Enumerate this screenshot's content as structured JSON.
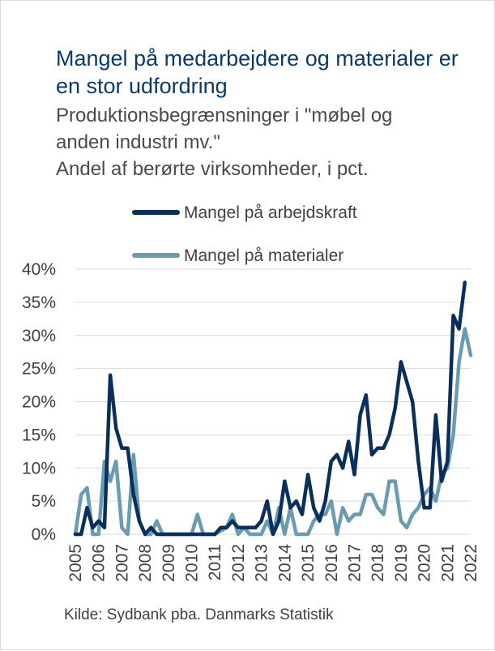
{
  "chart_data": {
    "type": "line",
    "title": "Mangel på medarbejdere og materialer er en stor udfordring",
    "subtitle": [
      "Produktionsbegrænsninger i \"møbel og",
      "anden industri mv.\"",
      "Andel af berørte virksomheder, i pct."
    ],
    "source": "Kilde: Sydbank pba. Danmarks Statistik",
    "ylim": [
      0,
      40
    ],
    "yticks": [
      "0%",
      "5%",
      "10%",
      "15%",
      "20%",
      "25%",
      "30%",
      "35%",
      "40%"
    ],
    "xlim": [
      2005,
      2022
    ],
    "xticks": [
      "2005",
      "2006",
      "2007",
      "2008",
      "2009",
      "2010",
      "2011",
      "2012",
      "2013",
      "2014",
      "2015",
      "2016",
      "2017",
      "2018",
      "2019",
      "2020",
      "2021",
      "2022"
    ],
    "grid": "horizontal",
    "legend_position": "top",
    "series": [
      {
        "name": "Mangel på arbejdskraft",
        "color": "#0b2f5b",
        "points": [
          [
            2005.0,
            0
          ],
          [
            2005.25,
            0
          ],
          [
            2005.5,
            4
          ],
          [
            2005.75,
            1
          ],
          [
            2006.0,
            2
          ],
          [
            2006.25,
            1
          ],
          [
            2006.5,
            24
          ],
          [
            2006.75,
            16
          ],
          [
            2007.0,
            13
          ],
          [
            2007.25,
            13
          ],
          [
            2007.5,
            6
          ],
          [
            2007.75,
            2
          ],
          [
            2008.0,
            0
          ],
          [
            2008.25,
            1
          ],
          [
            2008.5,
            0
          ],
          [
            2008.75,
            0
          ],
          [
            2009.0,
            0
          ],
          [
            2009.5,
            0
          ],
          [
            2010.0,
            0
          ],
          [
            2010.5,
            0
          ],
          [
            2011.0,
            0
          ],
          [
            2011.25,
            1
          ],
          [
            2011.5,
            1
          ],
          [
            2011.75,
            2
          ],
          [
            2012.0,
            1
          ],
          [
            2012.25,
            1
          ],
          [
            2012.5,
            1
          ],
          [
            2012.75,
            1
          ],
          [
            2013.0,
            2
          ],
          [
            2013.25,
            5
          ],
          [
            2013.5,
            0
          ],
          [
            2013.75,
            2
          ],
          [
            2014.0,
            8
          ],
          [
            2014.25,
            4
          ],
          [
            2014.5,
            5
          ],
          [
            2014.75,
            3
          ],
          [
            2015.0,
            9
          ],
          [
            2015.25,
            4
          ],
          [
            2015.5,
            2
          ],
          [
            2015.75,
            5
          ],
          [
            2016.0,
            11
          ],
          [
            2016.25,
            12
          ],
          [
            2016.5,
            10
          ],
          [
            2016.75,
            14
          ],
          [
            2017.0,
            9
          ],
          [
            2017.25,
            18
          ],
          [
            2017.5,
            21
          ],
          [
            2017.75,
            12
          ],
          [
            2018.0,
            13
          ],
          [
            2018.25,
            13
          ],
          [
            2018.5,
            15
          ],
          [
            2018.75,
            19
          ],
          [
            2019.0,
            26
          ],
          [
            2019.25,
            23
          ],
          [
            2019.5,
            20
          ],
          [
            2019.75,
            11
          ],
          [
            2020.0,
            4
          ],
          [
            2020.25,
            4
          ],
          [
            2020.5,
            18
          ],
          [
            2020.75,
            8
          ],
          [
            2021.0,
            11
          ],
          [
            2021.25,
            33
          ],
          [
            2021.5,
            31
          ],
          [
            2021.75,
            38
          ]
        ]
      },
      {
        "name": "Mangel på materialer",
        "color": "#6a9bb0",
        "points": [
          [
            2005.0,
            0
          ],
          [
            2005.25,
            6
          ],
          [
            2005.5,
            7
          ],
          [
            2005.75,
            0
          ],
          [
            2006.0,
            0
          ],
          [
            2006.25,
            11
          ],
          [
            2006.5,
            8
          ],
          [
            2006.75,
            11
          ],
          [
            2007.0,
            1
          ],
          [
            2007.25,
            0
          ],
          [
            2007.5,
            12
          ],
          [
            2007.75,
            2
          ],
          [
            2008.0,
            0
          ],
          [
            2008.25,
            0
          ],
          [
            2008.5,
            2
          ],
          [
            2008.75,
            0
          ],
          [
            2009.0,
            0
          ],
          [
            2009.5,
            0
          ],
          [
            2010.0,
            0
          ],
          [
            2010.25,
            3
          ],
          [
            2010.5,
            0
          ],
          [
            2011.0,
            0
          ],
          [
            2011.5,
            1
          ],
          [
            2011.75,
            3
          ],
          [
            2012.0,
            0
          ],
          [
            2012.25,
            1
          ],
          [
            2012.5,
            0
          ],
          [
            2012.75,
            0
          ],
          [
            2013.0,
            0
          ],
          [
            2013.25,
            2
          ],
          [
            2013.5,
            0
          ],
          [
            2013.75,
            4
          ],
          [
            2014.0,
            0
          ],
          [
            2014.25,
            4
          ],
          [
            2014.5,
            0
          ],
          [
            2014.75,
            0
          ],
          [
            2015.0,
            0
          ],
          [
            2015.25,
            2
          ],
          [
            2015.5,
            3
          ],
          [
            2015.75,
            3
          ],
          [
            2016.0,
            5
          ],
          [
            2016.25,
            0
          ],
          [
            2016.5,
            4
          ],
          [
            2016.75,
            2
          ],
          [
            2017.0,
            3
          ],
          [
            2017.25,
            3
          ],
          [
            2017.5,
            6
          ],
          [
            2017.75,
            6
          ],
          [
            2018.0,
            4
          ],
          [
            2018.25,
            3
          ],
          [
            2018.5,
            8
          ],
          [
            2018.75,
            8
          ],
          [
            2019.0,
            2
          ],
          [
            2019.25,
            1
          ],
          [
            2019.5,
            3
          ],
          [
            2019.75,
            4
          ],
          [
            2020.0,
            6
          ],
          [
            2020.25,
            7
          ],
          [
            2020.5,
            5
          ],
          [
            2020.75,
            9
          ],
          [
            2021.0,
            10
          ],
          [
            2021.25,
            15
          ],
          [
            2021.5,
            26
          ],
          [
            2021.75,
            31
          ],
          [
            2022.0,
            27
          ]
        ]
      }
    ]
  }
}
